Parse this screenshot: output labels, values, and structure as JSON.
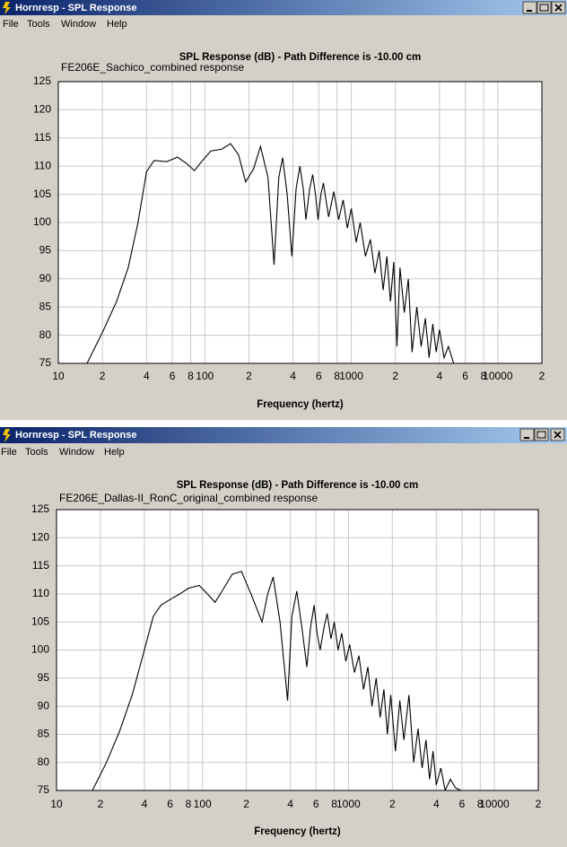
{
  "windows": [
    {
      "title": "Hornresp - SPL Response",
      "menu": [
        "File",
        "Tools",
        "Window",
        "Help"
      ]
    },
    {
      "title": "Hornresp - SPL Response",
      "menu": [
        "File",
        "Tools",
        "Window",
        "Help"
      ]
    }
  ],
  "chart_data": [
    {
      "type": "line",
      "title": "SPL Response (dB) - Path Difference is -10.00 cm",
      "subtitle": "FE206E_Sachico_combined response",
      "x_label": "Frequency (hertz)",
      "x": [
        15.7,
        20,
        25,
        30,
        35,
        40,
        45,
        55,
        65,
        75,
        85,
        95,
        110,
        130,
        150,
        170,
        190,
        215,
        240,
        270,
        297,
        320,
        340,
        365,
        393,
        420,
        446,
        470,
        490,
        520,
        545,
        570,
        593,
        620,
        645,
        700,
        760,
        820,
        880,
        940,
        1000,
        1080,
        1150,
        1250,
        1350,
        1450,
        1550,
        1650,
        1750,
        1850,
        1950,
        2050,
        2150,
        2300,
        2450,
        2600,
        2800,
        3000,
        3200,
        3400,
        3600,
        3800,
        4000,
        4300,
        4600,
        5000
      ],
      "values": [
        75,
        80.5,
        86,
        92,
        100,
        109,
        111,
        110.8,
        111.6,
        110.5,
        109.2,
        110.8,
        112.7,
        113,
        114,
        112,
        107.2,
        109.5,
        113.5,
        108,
        92.5,
        108,
        111.5,
        105,
        94,
        106,
        110,
        106,
        100.5,
        106,
        108.5,
        105,
        100.5,
        105,
        107,
        101,
        105.5,
        100.5,
        104,
        99,
        102.5,
        96.5,
        100,
        94,
        97,
        91,
        95,
        88,
        94,
        86,
        93,
        78,
        92,
        84,
        90,
        77,
        85,
        78,
        83,
        76,
        82,
        77,
        81,
        76,
        78,
        75
      ],
      "color": "#000000",
      "log_x": true,
      "xlim": [
        10,
        20000
      ],
      "xticks": [
        10,
        {
          "value": 20,
          "label": "2"
        },
        {
          "value": 40,
          "label": "4"
        },
        {
          "value": 60,
          "label": "6"
        },
        {
          "value": 80,
          "label": "8"
        },
        100,
        {
          "value": 200,
          "label": "2"
        },
        {
          "value": 400,
          "label": "4"
        },
        {
          "value": 600,
          "label": "6"
        },
        {
          "value": 800,
          "label": "8"
        },
        1000,
        {
          "value": 2000,
          "label": "2"
        },
        {
          "value": 4000,
          "label": "4"
        },
        {
          "value": 6000,
          "label": "6"
        },
        {
          "value": 8000,
          "label": "8"
        },
        10000,
        {
          "value": 20000,
          "label": "2"
        }
      ],
      "ylim": [
        75,
        125
      ],
      "yticks": [
        75,
        80,
        85,
        90,
        95,
        100,
        105,
        110,
        115,
        120,
        125
      ],
      "grid": true
    },
    {
      "type": "line",
      "title": "SPL Response (dB) - Path Difference is -10.00 cm",
      "subtitle": "FE206E_Dallas-II_RonC_original_combined response",
      "x_label": "Frequency (hertz)",
      "x": [
        17.6,
        22,
        27,
        33,
        40,
        46,
        52,
        60,
        70,
        80,
        95,
        108,
        122,
        140,
        160,
        185,
        215,
        256,
        280,
        305,
        340,
        383,
        410,
        443,
        480,
        519,
        550,
        582,
        610,
        640,
        680,
        715,
        760,
        800,
        850,
        900,
        960,
        1020,
        1100,
        1180,
        1270,
        1360,
        1450,
        1550,
        1650,
        1750,
        1850,
        1950,
        2100,
        2250,
        2400,
        2600,
        2800,
        3000,
        3200,
        3400,
        3600,
        3800,
        4000,
        4300,
        4600,
        5000,
        5400,
        5900
      ],
      "values": [
        75,
        80,
        85.5,
        92,
        100,
        106,
        108,
        109,
        110,
        111,
        111.5,
        110,
        108.5,
        111,
        113.5,
        114,
        110,
        105,
        110,
        113,
        105,
        91,
        106,
        110.5,
        104,
        97,
        104,
        108,
        103,
        100,
        104,
        106.5,
        102,
        105,
        100,
        103,
        98,
        101,
        96,
        99,
        93,
        97,
        90,
        95,
        88,
        93,
        85,
        92,
        82,
        91,
        84,
        92,
        80,
        86,
        79,
        84,
        77,
        82,
        76,
        79,
        75,
        77,
        75.5,
        75
      ],
      "color": "#000000",
      "log_x": true,
      "xlim": [
        10,
        20000
      ],
      "xticks": [
        10,
        {
          "value": 20,
          "label": "2"
        },
        {
          "value": 40,
          "label": "4"
        },
        {
          "value": 60,
          "label": "6"
        },
        {
          "value": 80,
          "label": "8"
        },
        100,
        {
          "value": 200,
          "label": "2"
        },
        {
          "value": 400,
          "label": "4"
        },
        {
          "value": 600,
          "label": "6"
        },
        {
          "value": 800,
          "label": "8"
        },
        1000,
        {
          "value": 2000,
          "label": "2"
        },
        {
          "value": 4000,
          "label": "4"
        },
        {
          "value": 6000,
          "label": "6"
        },
        {
          "value": 8000,
          "label": "8"
        },
        10000,
        {
          "value": 20000,
          "label": "2"
        }
      ],
      "ylim": [
        75,
        125
      ],
      "yticks": [
        75,
        80,
        85,
        90,
        95,
        100,
        105,
        110,
        115,
        120,
        125
      ],
      "grid": true
    }
  ]
}
